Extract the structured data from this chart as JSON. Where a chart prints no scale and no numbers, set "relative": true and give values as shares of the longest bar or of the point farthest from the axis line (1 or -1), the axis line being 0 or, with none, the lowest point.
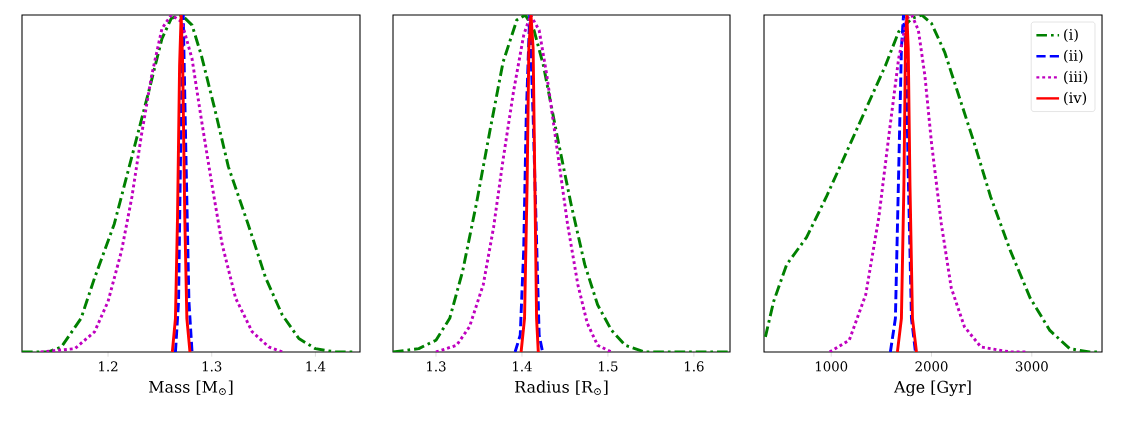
{
  "chart_data": [
    {
      "type": "line",
      "relative": true,
      "xlabel": "Mass [M$_{⊙}$]",
      "xlim": [
        1.117,
        1.443
      ],
      "xticks": [
        1.2,
        1.3,
        1.4
      ],
      "series": [
        {
          "color": "#008000",
          "line_style": "dashdot",
          "x": [
            1.117,
            1.142,
            1.155,
            1.174,
            1.187,
            1.206,
            1.223,
            1.239,
            1.252,
            1.261,
            1.271,
            1.281,
            1.29,
            1.303,
            1.316,
            1.335,
            1.352,
            1.368,
            1.384,
            1.4,
            1.419,
            1.439
          ],
          "values": [
            0,
            0,
            0.015,
            0.1,
            0.22,
            0.38,
            0.58,
            0.77,
            0.93,
            0.99,
            1.0,
            0.97,
            0.88,
            0.72,
            0.55,
            0.38,
            0.22,
            0.11,
            0.04,
            0.01,
            0,
            0
          ]
        },
        {
          "color": "#0000ff",
          "line_style": "dashed",
          "x": [
            1.265,
            1.268,
            1.27,
            1.2725,
            1.275,
            1.278,
            1.281
          ],
          "values": [
            0,
            0.15,
            0.6,
            1.0,
            0.6,
            0.15,
            0
          ]
        },
        {
          "color": "#bf00bf",
          "line_style": "dotted",
          "x": [
            1.135,
            1.168,
            1.187,
            1.2,
            1.213,
            1.223,
            1.232,
            1.242,
            1.252,
            1.261,
            1.271,
            1.281,
            1.29,
            1.3,
            1.31,
            1.323,
            1.339,
            1.355,
            1.368
          ],
          "values": [
            0,
            0.01,
            0.06,
            0.15,
            0.3,
            0.46,
            0.64,
            0.82,
            0.96,
            1.0,
            0.98,
            0.87,
            0.69,
            0.5,
            0.32,
            0.16,
            0.06,
            0.015,
            0
          ]
        },
        {
          "color": "#ff0000",
          "line_style": "solid",
          "x": [
            1.262,
            1.265,
            1.267,
            1.269,
            1.2705,
            1.272,
            1.274,
            1.276,
            1.279
          ],
          "values": [
            0,
            0.1,
            0.4,
            0.85,
            1.0,
            0.85,
            0.4,
            0.1,
            0
          ]
        }
      ]
    },
    {
      "type": "line",
      "relative": true,
      "xlabel": "Radius [R$_{⊙}$]",
      "xlim": [
        1.25,
        1.642
      ],
      "xticks": [
        1.3,
        1.4,
        1.5,
        1.6
      ],
      "series": [
        {
          "color": "#008000",
          "line_style": "dashdot",
          "x": [
            1.25,
            1.28,
            1.3,
            1.316,
            1.331,
            1.347,
            1.363,
            1.378,
            1.394,
            1.404,
            1.414,
            1.425,
            1.441,
            1.457,
            1.473,
            1.488,
            1.504,
            1.52,
            1.543,
            1.641
          ],
          "values": [
            0,
            0.01,
            0.035,
            0.1,
            0.24,
            0.44,
            0.66,
            0.86,
            0.985,
            1.0,
            0.955,
            0.85,
            0.64,
            0.44,
            0.26,
            0.14,
            0.065,
            0.02,
            0,
            0
          ]
        },
        {
          "color": "#0000ff",
          "line_style": "dashed",
          "x": [
            1.392,
            1.398,
            1.402,
            1.405,
            1.409,
            1.413,
            1.416,
            1.42,
            1.424
          ],
          "values": [
            0,
            0.05,
            0.3,
            0.7,
            1.0,
            0.7,
            null,
            0.05,
            0
          ]
        },
        {
          "color": "#bf00bf",
          "line_style": "dotted",
          "x": [
            1.3,
            1.324,
            1.339,
            1.355,
            1.367,
            1.378,
            1.39,
            1.402,
            1.41,
            1.42,
            1.429,
            1.441,
            1.453,
            1.465,
            1.476,
            1.488,
            1.504
          ],
          "values": [
            0,
            0.02,
            0.075,
            0.2,
            0.37,
            0.57,
            0.77,
            0.94,
            1.0,
            0.955,
            0.82,
            0.6,
            0.38,
            0.2,
            0.085,
            0.02,
            0
          ]
        },
        {
          "color": "#ff0000",
          "line_style": "solid",
          "x": [
            1.399,
            1.403,
            1.406,
            1.408,
            1.4105,
            1.413,
            1.415,
            1.417,
            1.419
          ],
          "values": [
            0,
            0.1,
            0.5,
            0.9,
            1.0,
            0.9,
            0.5,
            0.1,
            0
          ]
        }
      ]
    },
    {
      "type": "line",
      "relative": true,
      "xlabel": "Age [Gyr]",
      "xlim": [
        330,
        3700
      ],
      "xticks": [
        1000,
        2000,
        3000
      ],
      "legend": "top right",
      "series": [
        {
          "name": "(i)",
          "color": "#008000",
          "line_style": "dashdot",
          "x": [
            344,
            426,
            557,
            754,
            951,
            1148,
            1344,
            1541,
            1672,
            1803,
            1902,
            2000,
            2131,
            2262,
            2426,
            2590,
            2787,
            2984,
            3180,
            3377,
            3574,
            3656
          ],
          "values": [
            0.045,
            0.15,
            0.26,
            0.34,
            0.46,
            0.59,
            0.72,
            0.85,
            0.95,
            0.99,
            1.0,
            0.975,
            0.89,
            0.77,
            0.62,
            0.46,
            0.3,
            0.16,
            0.064,
            0.01,
            0,
            0
          ]
        },
        {
          "name": "(ii)",
          "color": "#0000ff",
          "line_style": "dashed",
          "x": [
            1590,
            1640,
            1670,
            1700,
            1721,
            1745,
            1770,
            1800,
            1840
          ],
          "values": [
            0,
            0.1,
            0.5,
            0.9,
            1.0,
            0.9,
            0.5,
            0.1,
            0
          ]
        },
        {
          "name": "(iii)",
          "color": "#bf00bf",
          "line_style": "dotted",
          "x": [
            984,
            1180,
            1344,
            1475,
            1574,
            1672,
            1754,
            1803,
            1869,
            1934,
            2000,
            2098,
            2197,
            2328,
            2492,
            2787,
            2951
          ],
          "values": [
            0,
            0.035,
            0.17,
            0.4,
            0.64,
            0.87,
            0.99,
            1.0,
            0.955,
            0.82,
            0.62,
            0.38,
            0.19,
            0.075,
            0.015,
            0,
            0
          ]
        },
        {
          "name": "(iv)",
          "color": "#ff0000",
          "line_style": "solid",
          "x": [
            1660,
            1700,
            1725,
            1740,
            1754,
            1768,
            1785,
            1810,
            1850
          ],
          "values": [
            0,
            0.1,
            0.5,
            0.9,
            1.0,
            0.9,
            0.5,
            0.1,
            0
          ]
        }
      ]
    }
  ]
}
